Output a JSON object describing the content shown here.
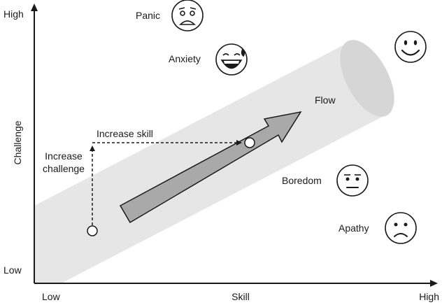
{
  "axes": {
    "y_title": "Challenge",
    "y_high": "High",
    "y_low": "Low",
    "x_title": "Skill",
    "x_low": "Low",
    "x_high": "High"
  },
  "states": {
    "panic": "Panic",
    "anxiety": "Anxiety",
    "flow": "Flow",
    "boredom": "Boredom",
    "apathy": "Apathy"
  },
  "annotations": {
    "increase_skill": "Increase skill",
    "increase_challenge_line1": "Increase",
    "increase_challenge_line2": "challenge"
  },
  "icons": {
    "panic": "panic-face-icon",
    "anxiety": "anxiety-face-icon",
    "flow": "happy-face-icon",
    "boredom": "bored-face-icon",
    "apathy": "sad-face-icon"
  },
  "colors": {
    "ink": "#1a1a1a",
    "channel": "#e6e6e6",
    "channel_end": "#d6d6d6",
    "arrow_fill": "#a9a9a9"
  }
}
